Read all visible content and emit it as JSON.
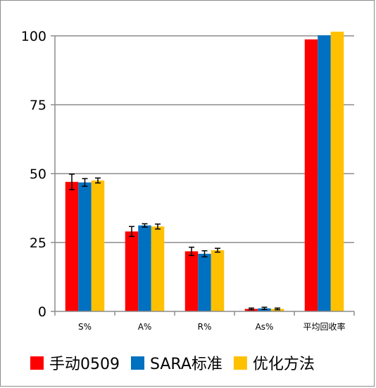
{
  "chart_data": {
    "type": "bar",
    "title": "",
    "xlabel": "",
    "ylabel": "",
    "categories": [
      "S%",
      "A%",
      "R%",
      "As%",
      "平均回收率"
    ],
    "ylim": [
      0,
      100
    ],
    "yticks": [
      0,
      25,
      50,
      75,
      100
    ],
    "grid": true,
    "legend_position": "bottom",
    "series": [
      {
        "name": "手动0509",
        "color": "#ff0000",
        "values": [
          47.0,
          29.0,
          21.8,
          0.9,
          98.7
        ],
        "errors": [
          2.8,
          1.8,
          1.5,
          0.3,
          null
        ]
      },
      {
        "name": "SARA标准",
        "color": "#0070c0",
        "values": [
          46.8,
          31.2,
          20.9,
          1.1,
          100.2
        ],
        "errors": [
          1.4,
          0.6,
          1.1,
          0.4,
          null
        ]
      },
      {
        "name": "优化方法",
        "color": "#ffc000",
        "values": [
          47.5,
          30.8,
          22.2,
          0.9,
          101.5
        ],
        "errors": [
          0.9,
          0.9,
          0.7,
          0.3,
          null
        ]
      }
    ]
  }
}
